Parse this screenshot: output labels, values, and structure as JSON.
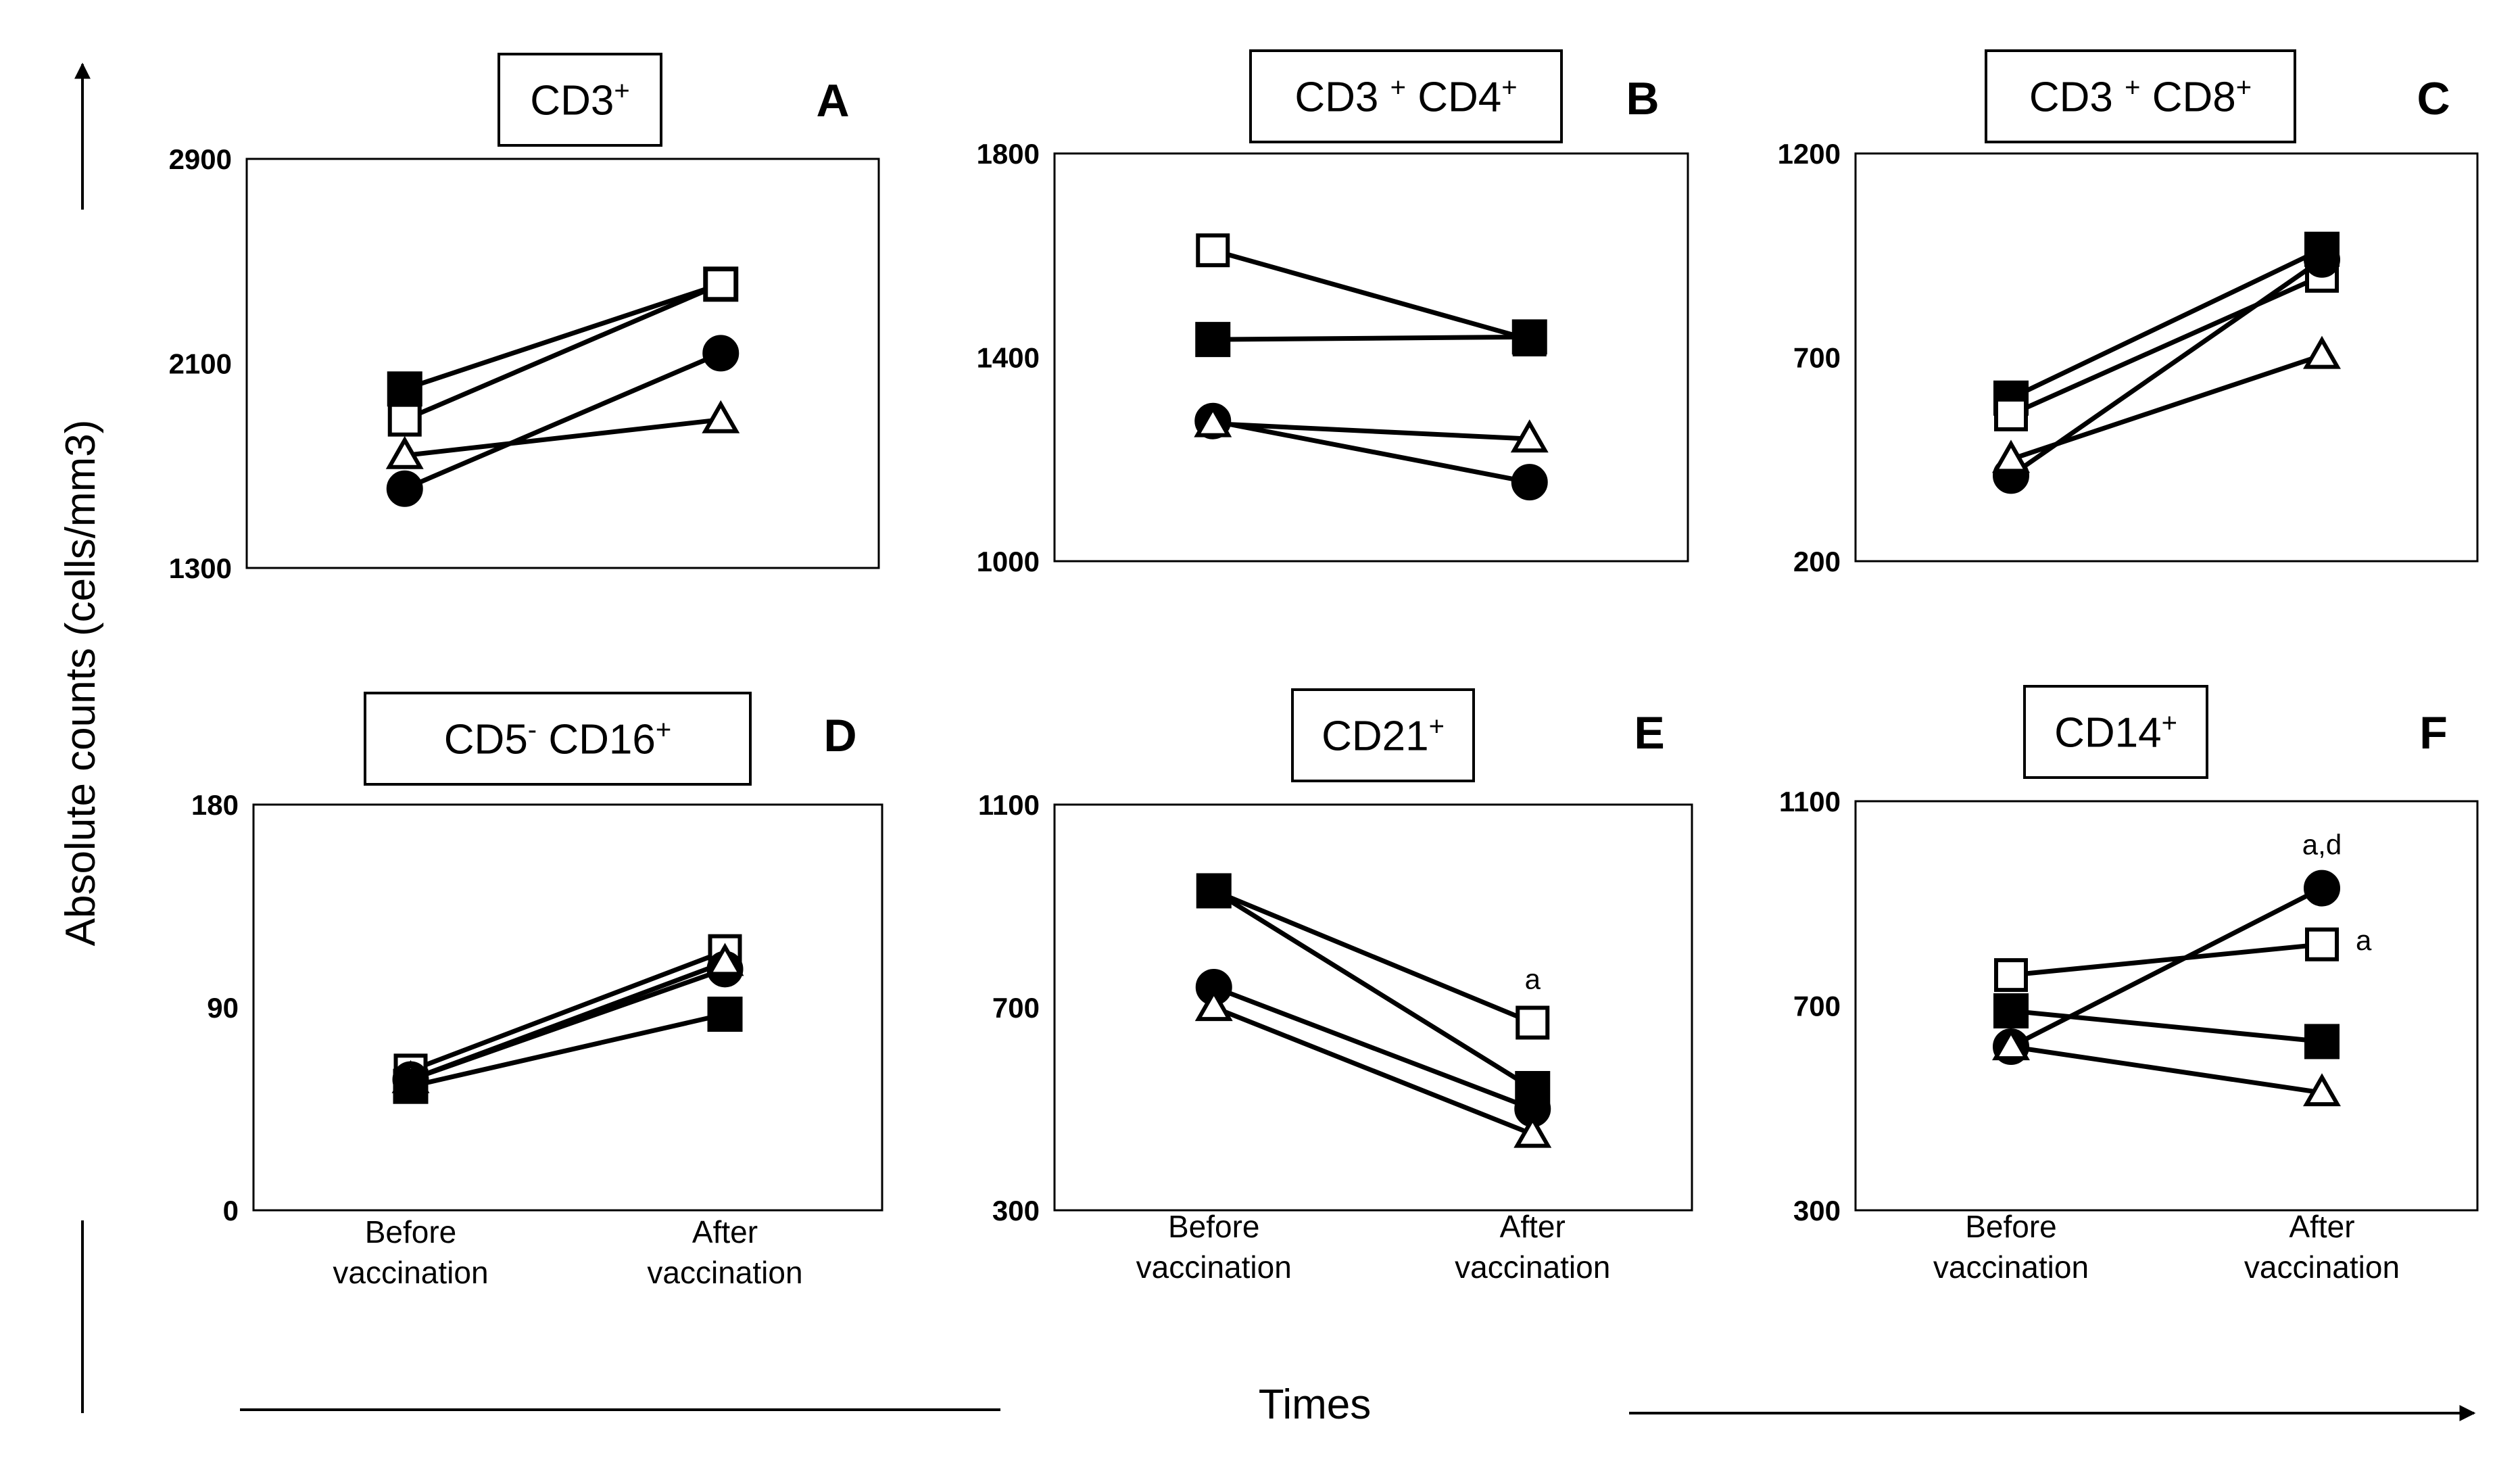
{
  "figure": {
    "y_axis_title": "Absolute counts (cells/mm3)",
    "x_axis_title": "Times"
  },
  "chart_data": [
    {
      "type": "line",
      "letter": "A",
      "title": "CD3+",
      "title_parts": [
        {
          "t": "CD3"
        },
        {
          "t": "+",
          "sup": true
        }
      ],
      "categories": [
        "Before vaccination",
        "After vaccination"
      ],
      "ylim": [
        1300,
        2900
      ],
      "yticks": [
        1300,
        2100,
        2900
      ],
      "xlabel": "",
      "ylabel": "Absolute counts (cells/mm3)",
      "show_category_labels": false,
      "series": [
        {
          "name": "filled square",
          "marker": "filled-square",
          "values": [
            2000,
            2410
          ]
        },
        {
          "name": "open square",
          "marker": "open-square",
          "values": [
            1880,
            2410
          ]
        },
        {
          "name": "filled circle",
          "marker": "filled-circle",
          "values": [
            1610,
            2140
          ]
        },
        {
          "name": "open triangle",
          "marker": "open-triangle",
          "values": [
            1740,
            1880
          ]
        }
      ],
      "annotations": []
    },
    {
      "type": "line",
      "letter": "B",
      "title": "CD3+ CD4+",
      "title_parts": [
        {
          "t": "CD3 "
        },
        {
          "t": "+",
          "sup": true
        },
        {
          "t": " CD4"
        },
        {
          "t": "+",
          "sup": true
        }
      ],
      "categories": [
        "Before vaccination",
        "After vaccination"
      ],
      "ylim": [
        1000,
        1800
      ],
      "yticks": [
        1000,
        1400,
        1800
      ],
      "xlabel": "",
      "ylabel": "Absolute counts (cells/mm3)",
      "show_category_labels": false,
      "series": [
        {
          "name": "open square",
          "marker": "open-square",
          "values": [
            1610,
            1435
          ]
        },
        {
          "name": "filled square",
          "marker": "filled-square",
          "values": [
            1435,
            1440
          ]
        },
        {
          "name": "filled circle",
          "marker": "filled-circle",
          "values": [
            1275,
            1155
          ]
        },
        {
          "name": "open triangle",
          "marker": "open-triangle",
          "values": [
            1270,
            1240
          ]
        }
      ],
      "annotations": []
    },
    {
      "type": "line",
      "letter": "C",
      "title": "CD3+ CD8+",
      "title_parts": [
        {
          "t": "CD3 "
        },
        {
          "t": "+",
          "sup": true
        },
        {
          "t": " CD8"
        },
        {
          "t": "+",
          "sup": true
        }
      ],
      "categories": [
        "Before vaccination",
        "After vaccination"
      ],
      "ylim": [
        200,
        1200
      ],
      "yticks": [
        200,
        700,
        1200
      ],
      "xlabel": "",
      "ylabel": "Absolute counts (cells/mm3)",
      "show_category_labels": false,
      "series": [
        {
          "name": "filled square",
          "marker": "filled-square",
          "values": [
            600,
            965
          ]
        },
        {
          "name": "open square",
          "marker": "open-square",
          "values": [
            560,
            900
          ]
        },
        {
          "name": "filled circle",
          "marker": "filled-circle",
          "values": [
            410,
            940
          ]
        },
        {
          "name": "open triangle",
          "marker": "open-triangle",
          "values": [
            450,
            705
          ]
        }
      ],
      "annotations": []
    },
    {
      "type": "line",
      "letter": "D",
      "title": "CD5- CD16+",
      "title_parts": [
        {
          "t": "CD5"
        },
        {
          "t": "-",
          "sup": true
        },
        {
          "t": " CD16"
        },
        {
          "t": "+",
          "sup": true
        }
      ],
      "categories": [
        "Before vaccination",
        "After vaccination"
      ],
      "ylim": [
        0,
        180
      ],
      "yticks": [
        0,
        90,
        180
      ],
      "xlabel": "",
      "ylabel": "Absolute counts (cells/mm3)",
      "show_category_labels": true,
      "series": [
        {
          "name": "open square",
          "marker": "open-square",
          "values": [
            62,
            115
          ]
        },
        {
          "name": "filled circle",
          "marker": "filled-circle",
          "values": [
            58,
            107
          ]
        },
        {
          "name": "open triangle",
          "marker": "open-triangle",
          "values": [
            58,
            110
          ]
        },
        {
          "name": "filled square",
          "marker": "filled-square",
          "values": [
            55,
            87
          ]
        }
      ],
      "annotations": []
    },
    {
      "type": "line",
      "letter": "E",
      "title": "CD21+",
      "title_parts": [
        {
          "t": "CD21"
        },
        {
          "t": "+",
          "sup": true
        }
      ],
      "categories": [
        "Before vaccination",
        "After vaccination"
      ],
      "ylim": [
        300,
        1100
      ],
      "yticks": [
        300,
        700,
        1100
      ],
      "xlabel": "",
      "ylabel": "Absolute counts (cells/mm3)",
      "show_category_labels": true,
      "series": [
        {
          "name": "open square",
          "marker": "open-square",
          "values": [
            930,
            670
          ]
        },
        {
          "name": "filled square",
          "marker": "filled-square",
          "values": [
            930,
            540
          ]
        },
        {
          "name": "filled circle",
          "marker": "filled-circle",
          "values": [
            740,
            500
          ]
        },
        {
          "name": "open triangle",
          "marker": "open-triangle",
          "values": [
            700,
            450
          ]
        }
      ],
      "annotations": [
        {
          "text": "a",
          "category": 1,
          "value": 670
        }
      ]
    },
    {
      "type": "line",
      "letter": "F",
      "title": "CD14+",
      "title_parts": [
        {
          "t": "CD14"
        },
        {
          "t": "+",
          "sup": true
        }
      ],
      "categories": [
        "Before vaccination",
        "After vaccination"
      ],
      "ylim": [
        300,
        1100
      ],
      "yticks": [
        300,
        700,
        1100
      ],
      "xlabel": "",
      "ylabel": "Absolute counts (cells/mm3)",
      "show_category_labels": true,
      "series": [
        {
          "name": "open square",
          "marker": "open-square",
          "values": [
            760,
            820
          ]
        },
        {
          "name": "filled square",
          "marker": "filled-square",
          "values": [
            690,
            630
          ]
        },
        {
          "name": "filled circle",
          "marker": "filled-circle",
          "values": [
            620,
            930
          ]
        },
        {
          "name": "open triangle",
          "marker": "open-triangle",
          "values": [
            620,
            530
          ]
        }
      ],
      "annotations": [
        {
          "text": "a,d",
          "category": 1,
          "value": 930
        },
        {
          "text": "a",
          "category": 1,
          "value": 820
        }
      ]
    }
  ]
}
